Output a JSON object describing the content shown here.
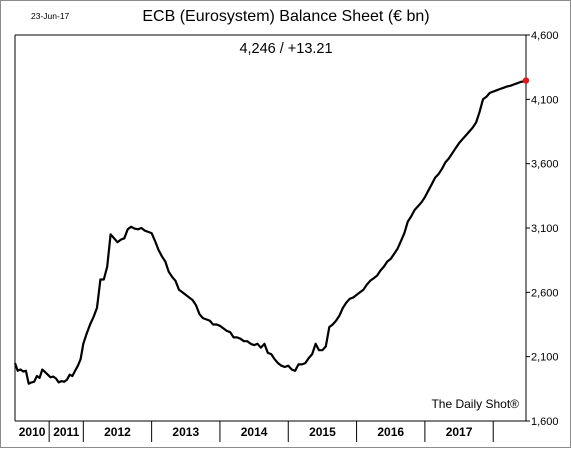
{
  "date_stamp": "23-Jun-17",
  "source_label": "The Daily Shot®",
  "chart_data": {
    "type": "line",
    "title": "ECB (Eurosystem) Balance Sheet (€ bn)",
    "subtitle": "4,246 / +13.21",
    "ylim": [
      1600,
      4600
    ],
    "yticks": [
      1600,
      2100,
      2600,
      3100,
      3600,
      4100,
      4600
    ],
    "ytick_labels": [
      "1,600",
      "2,100",
      "2,600",
      "3,100",
      "3,600",
      "4,100",
      "4,600"
    ],
    "xlim": [
      2010.0,
      2017.48
    ],
    "year_boundaries": [
      2010.5,
      2011.0,
      2012.0,
      2013.0,
      2014.0,
      2015.0,
      2016.0,
      2017.0
    ],
    "xtick_labels": [
      {
        "label": "2010",
        "x": 2010.25
      },
      {
        "label": "2011",
        "x": 2010.75
      },
      {
        "label": "2012",
        "x": 2011.5
      },
      {
        "label": "2013",
        "x": 2012.5
      },
      {
        "label": "2014",
        "x": 2013.5
      },
      {
        "label": "2015",
        "x": 2014.5
      },
      {
        "label": "2016",
        "x": 2015.5
      },
      {
        "label": "2017",
        "x": 2016.5
      }
    ],
    "grid": false,
    "line_color": "#000000",
    "endpoint_color": "#e8141c",
    "series": [
      {
        "x": [
          2010.0,
          2010.04,
          2010.08,
          2010.12,
          2010.16,
          2010.2,
          2010.24,
          2010.28,
          2010.32,
          2010.36,
          2010.4,
          2010.44,
          2010.48,
          2010.52,
          2010.56,
          2010.6,
          2010.64,
          2010.68,
          2010.72,
          2010.76,
          2010.8,
          2010.84,
          2010.88,
          2010.92,
          2010.96,
          2011.0,
          2011.05,
          2011.1,
          2011.15,
          2011.2,
          2011.25,
          2011.3,
          2011.35,
          2011.4,
          2011.45,
          2011.5,
          2011.55,
          2011.6,
          2011.65,
          2011.7,
          2011.75,
          2011.8,
          2011.85,
          2011.9,
          2011.95,
          2012.0,
          2012.05,
          2012.1,
          2012.15,
          2012.2,
          2012.25,
          2012.3,
          2012.35,
          2012.4,
          2012.45,
          2012.5,
          2012.55,
          2012.6,
          2012.65,
          2012.7,
          2012.75,
          2012.8,
          2012.85,
          2012.9,
          2012.95,
          2013.0,
          2013.05,
          2013.1,
          2013.15,
          2013.2,
          2013.25,
          2013.3,
          2013.35,
          2013.4,
          2013.45,
          2013.5,
          2013.55,
          2013.6,
          2013.65,
          2013.7,
          2013.75,
          2013.8,
          2013.85,
          2013.9,
          2013.95,
          2014.0,
          2014.05,
          2014.1,
          2014.15,
          2014.2,
          2014.25,
          2014.3,
          2014.35,
          2014.4,
          2014.45,
          2014.5,
          2014.55,
          2014.6,
          2014.65,
          2014.7,
          2014.75,
          2014.8,
          2014.85,
          2014.9,
          2014.95,
          2015.0,
          2015.05,
          2015.1,
          2015.15,
          2015.2,
          2015.25,
          2015.3,
          2015.35,
          2015.4,
          2015.45,
          2015.5,
          2015.55,
          2015.6,
          2015.65,
          2015.7,
          2015.75,
          2015.8,
          2015.85,
          2015.9,
          2015.95,
          2016.0,
          2016.05,
          2016.1,
          2016.15,
          2016.2,
          2016.25,
          2016.3,
          2016.35,
          2016.4,
          2016.45,
          2016.5,
          2016.55,
          2016.6,
          2016.65,
          2016.7,
          2016.75,
          2016.8,
          2016.85,
          2016.9,
          2016.95,
          2017.0,
          2017.05,
          2017.1,
          2017.15,
          2017.2,
          2017.25,
          2017.3,
          2017.35,
          2017.4,
          2017.45,
          2017.48
        ],
        "y": [
          2050,
          1990,
          2000,
          1985,
          1990,
          1890,
          1900,
          1905,
          1950,
          1935,
          2000,
          1980,
          1960,
          1940,
          1945,
          1930,
          1900,
          1910,
          1905,
          1920,
          1960,
          1950,
          1990,
          2030,
          2080,
          2200,
          2280,
          2350,
          2410,
          2480,
          2700,
          2700,
          2800,
          3050,
          3020,
          2990,
          3010,
          3020,
          3090,
          3110,
          3095,
          3090,
          3100,
          3080,
          3070,
          3060,
          3000,
          2930,
          2880,
          2840,
          2760,
          2720,
          2690,
          2620,
          2600,
          2580,
          2560,
          2540,
          2500,
          2430,
          2400,
          2390,
          2380,
          2350,
          2350,
          2340,
          2320,
          2300,
          2290,
          2250,
          2250,
          2240,
          2220,
          2220,
          2200,
          2190,
          2200,
          2170,
          2200,
          2130,
          2120,
          2080,
          2050,
          2030,
          2020,
          2030,
          2000,
          1990,
          2040,
          2040,
          2050,
          2090,
          2120,
          2200,
          2150,
          2150,
          2180,
          2330,
          2350,
          2380,
          2420,
          2480,
          2520,
          2550,
          2560,
          2580,
          2600,
          2620,
          2660,
          2690,
          2710,
          2730,
          2770,
          2800,
          2840,
          2860,
          2900,
          2940,
          3000,
          3060,
          3150,
          3190,
          3240,
          3270,
          3300,
          3340,
          3390,
          3440,
          3490,
          3520,
          3560,
          3610,
          3640,
          3680,
          3720,
          3760,
          3790,
          3820,
          3850,
          3880,
          3920,
          4000,
          4100,
          4120,
          4150,
          4160,
          4170,
          4180,
          4190,
          4200,
          4205,
          4215,
          4225,
          4235,
          4240,
          4246
        ]
      }
    ]
  }
}
